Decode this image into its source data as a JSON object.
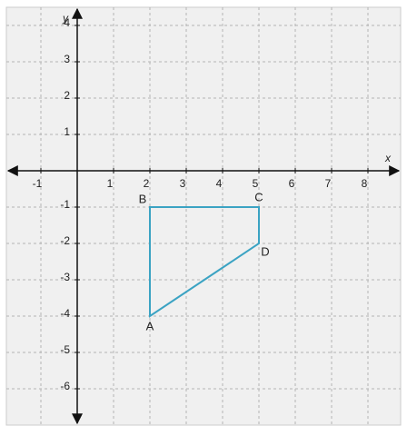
{
  "chart_data": {
    "type": "polygon",
    "xlabel": "x",
    "ylabel": "y",
    "xlim": [
      -1.95,
      8.9
    ],
    "ylim": [
      -7,
      4.5
    ],
    "xticks": [
      -1,
      1,
      2,
      3,
      4,
      5,
      6,
      7,
      8
    ],
    "yticks": [
      -6,
      -5,
      -4,
      -3,
      -2,
      -1,
      1,
      2,
      3,
      4
    ],
    "grid": true,
    "color": "#3ba3c3",
    "labels": [
      "A",
      "B",
      "C",
      "D"
    ],
    "x": [
      2,
      2,
      5,
      5
    ],
    "values": [
      -4,
      -1,
      -1,
      -2
    ]
  }
}
